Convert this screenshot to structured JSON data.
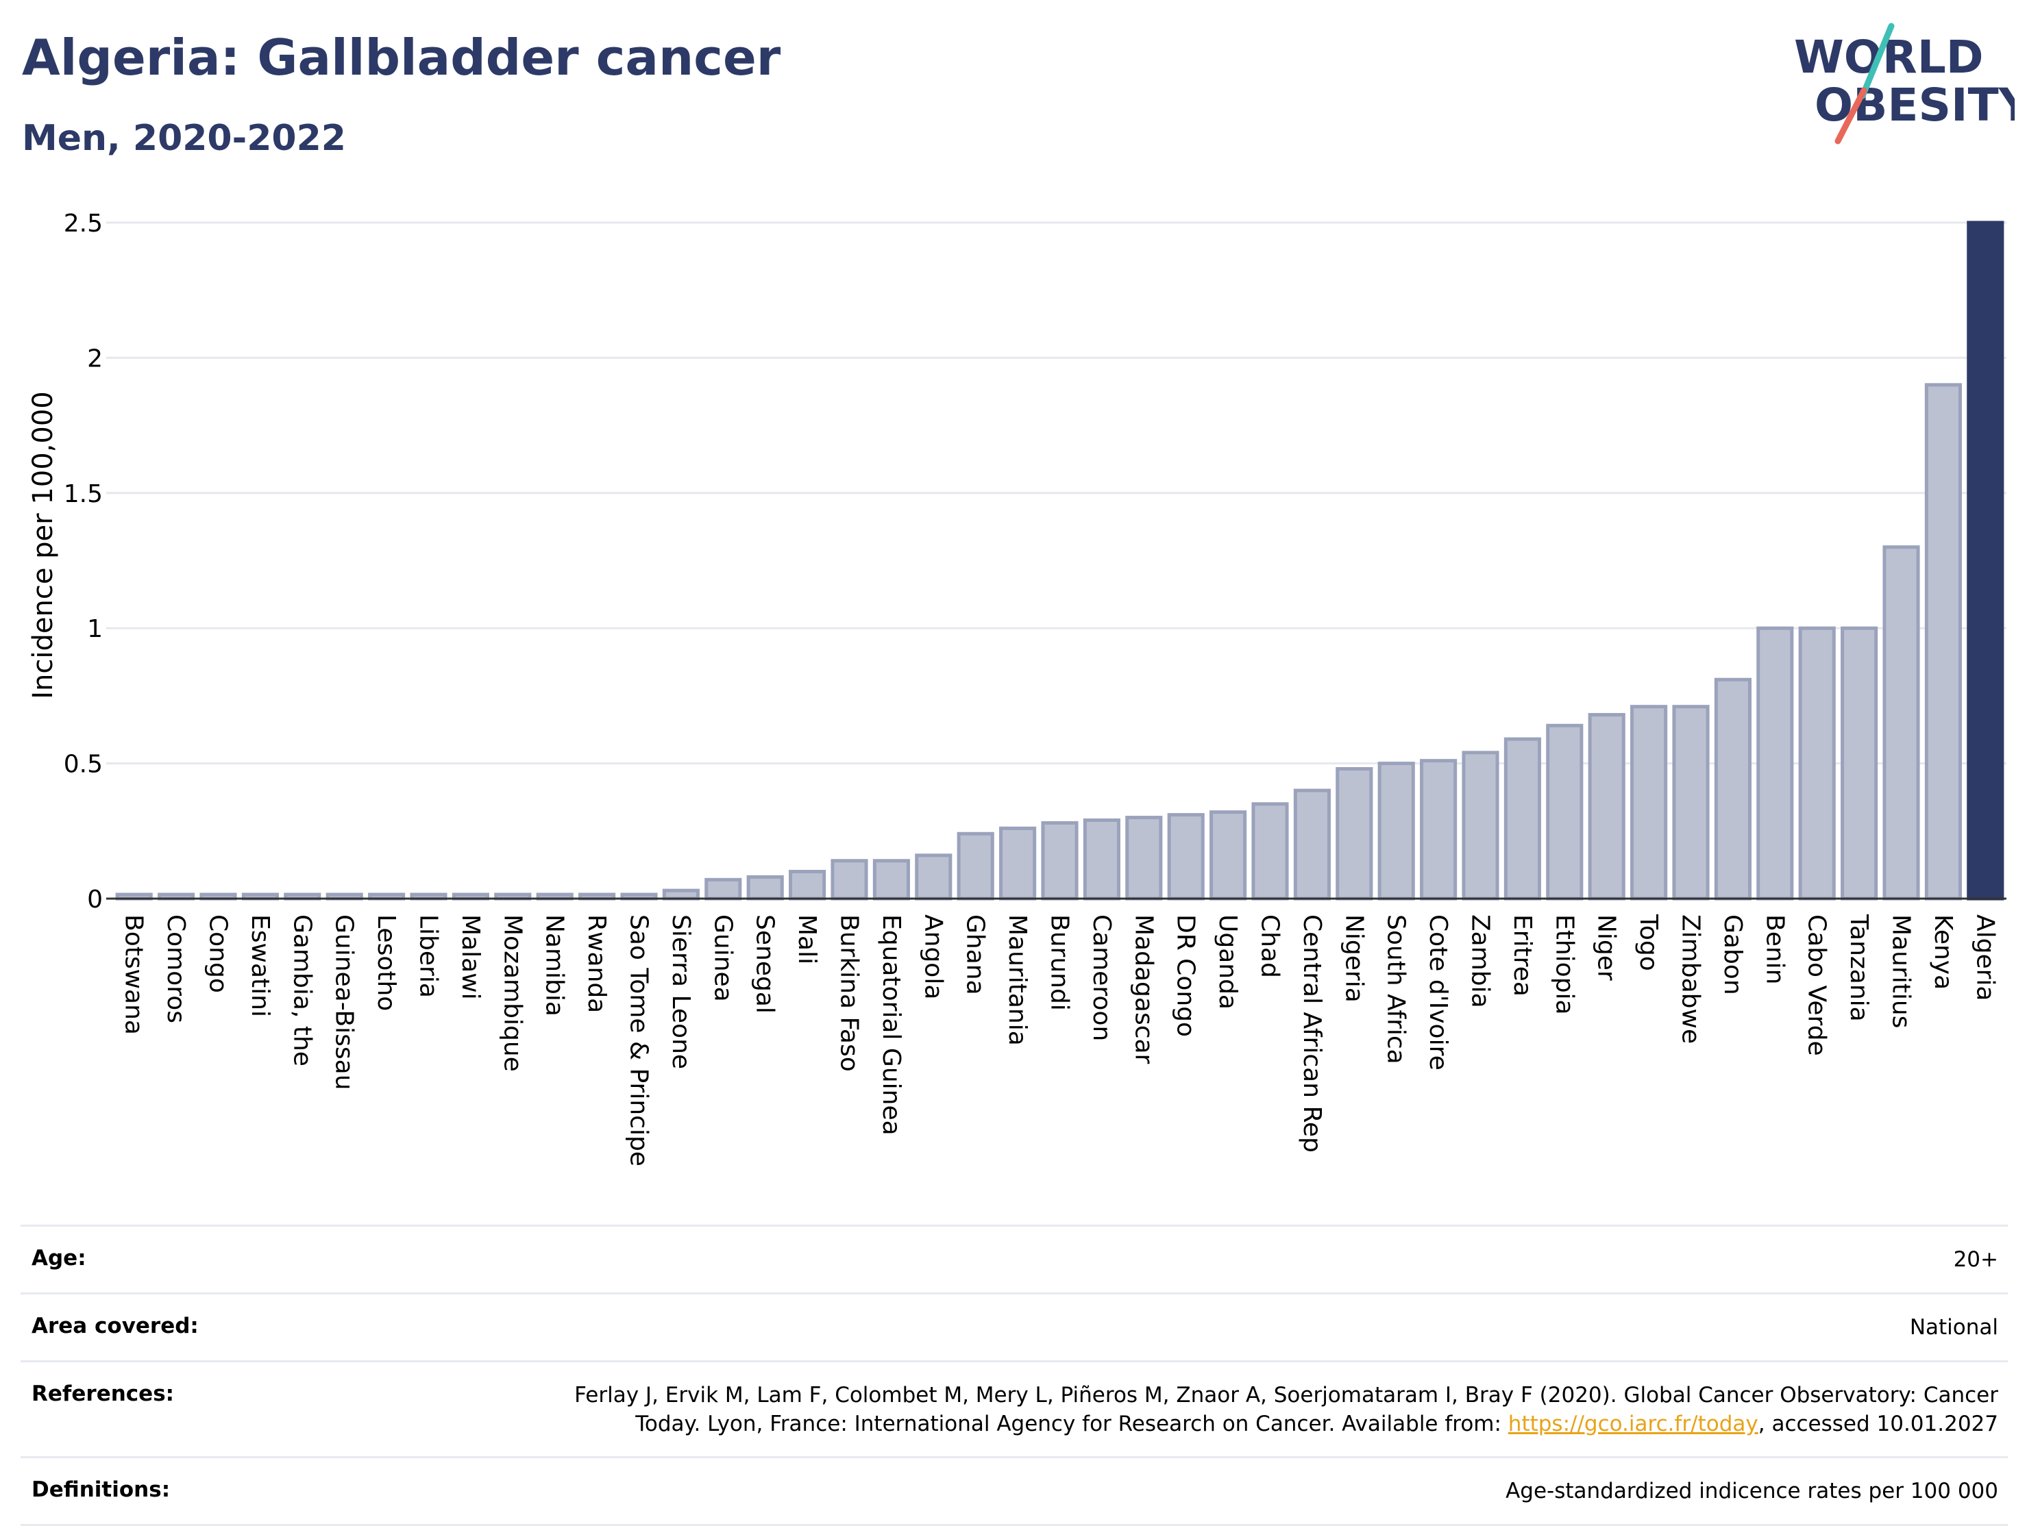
{
  "header": {
    "title": "Algeria: Gallbladder cancer",
    "subtitle": "Men, 2020-2022"
  },
  "logo": {
    "line1": "WORLD",
    "line2": "OBESITY",
    "colors": {
      "text": "#2d3a67",
      "slash_teal": "#3fbfb6",
      "slash_red": "#e8685a"
    }
  },
  "chart_data": {
    "type": "bar",
    "ylabel": "Incidence per 100,000",
    "ylim": [
      0,
      2.5
    ],
    "yticks": [
      0,
      0.5,
      1,
      1.5,
      2,
      2.5
    ],
    "ytick_labels": [
      "0",
      "0.5",
      "1",
      "1.5",
      "2",
      "2.5"
    ],
    "grid": true,
    "categories": [
      "Botswana",
      "Comoros",
      "Congo",
      "Eswatini",
      "Gambia, the",
      "Guinea-Bissau",
      "Lesotho",
      "Liberia",
      "Malawi",
      "Mozambique",
      "Namibia",
      "Rwanda",
      "Sao Tome & Principe",
      "Sierra Leone",
      "Guinea",
      "Senegal",
      "Mali",
      "Burkina Faso",
      "Equatorial Guinea",
      "Angola",
      "Ghana",
      "Mauritania",
      "Burundi",
      "Cameroon",
      "Madagascar",
      "DR Congo",
      "Uganda",
      "Chad",
      "Central African Rep",
      "Nigeria",
      "South Africa",
      "Cote d'Ivoire",
      "Zambia",
      "Eritrea",
      "Ethiopia",
      "Niger",
      "Togo",
      "Zimbabwe",
      "Gabon",
      "Benin",
      "Cabo Verde",
      "Tanzania",
      "Mauritius",
      "Kenya",
      "Algeria"
    ],
    "values": [
      0,
      0,
      0,
      0,
      0,
      0,
      0,
      0,
      0,
      0,
      0,
      0,
      0,
      0.03,
      0.07,
      0.08,
      0.1,
      0.14,
      0.14,
      0.16,
      0.24,
      0.26,
      0.28,
      0.29,
      0.3,
      0.31,
      0.32,
      0.35,
      0.4,
      0.48,
      0.5,
      0.51,
      0.54,
      0.59,
      0.64,
      0.68,
      0.71,
      0.71,
      0.81,
      1.0,
      1.0,
      1.0,
      1.3,
      1.9,
      2.5
    ],
    "highlight": "Algeria",
    "colors": {
      "bar": "#bcc1d1",
      "bar_edge": "#9aa2bc",
      "highlight": "#2d3a67",
      "grid": "#e6e8ee",
      "axis": "#333333"
    }
  },
  "meta": {
    "age_label": "Age:",
    "age_value": "20+",
    "area_label": "Area covered:",
    "area_value": "National",
    "references_label": "References:",
    "references_text": "Ferlay J, Ervik M, Lam F, Colombet M, Mery L, Piñeros M, Znaor A, Soerjomataram I, Bray F (2020). Global Cancer Observatory: Cancer Today. Lyon, France: International Agency for Research on Cancer. Available from:",
    "references_link": "https://gco.iarc.fr/today",
    "references_suffix": ", accessed 10.01.2027",
    "definitions_label": "Definitions:",
    "definitions_value": "Age-standardized indicence rates per 100 000"
  }
}
